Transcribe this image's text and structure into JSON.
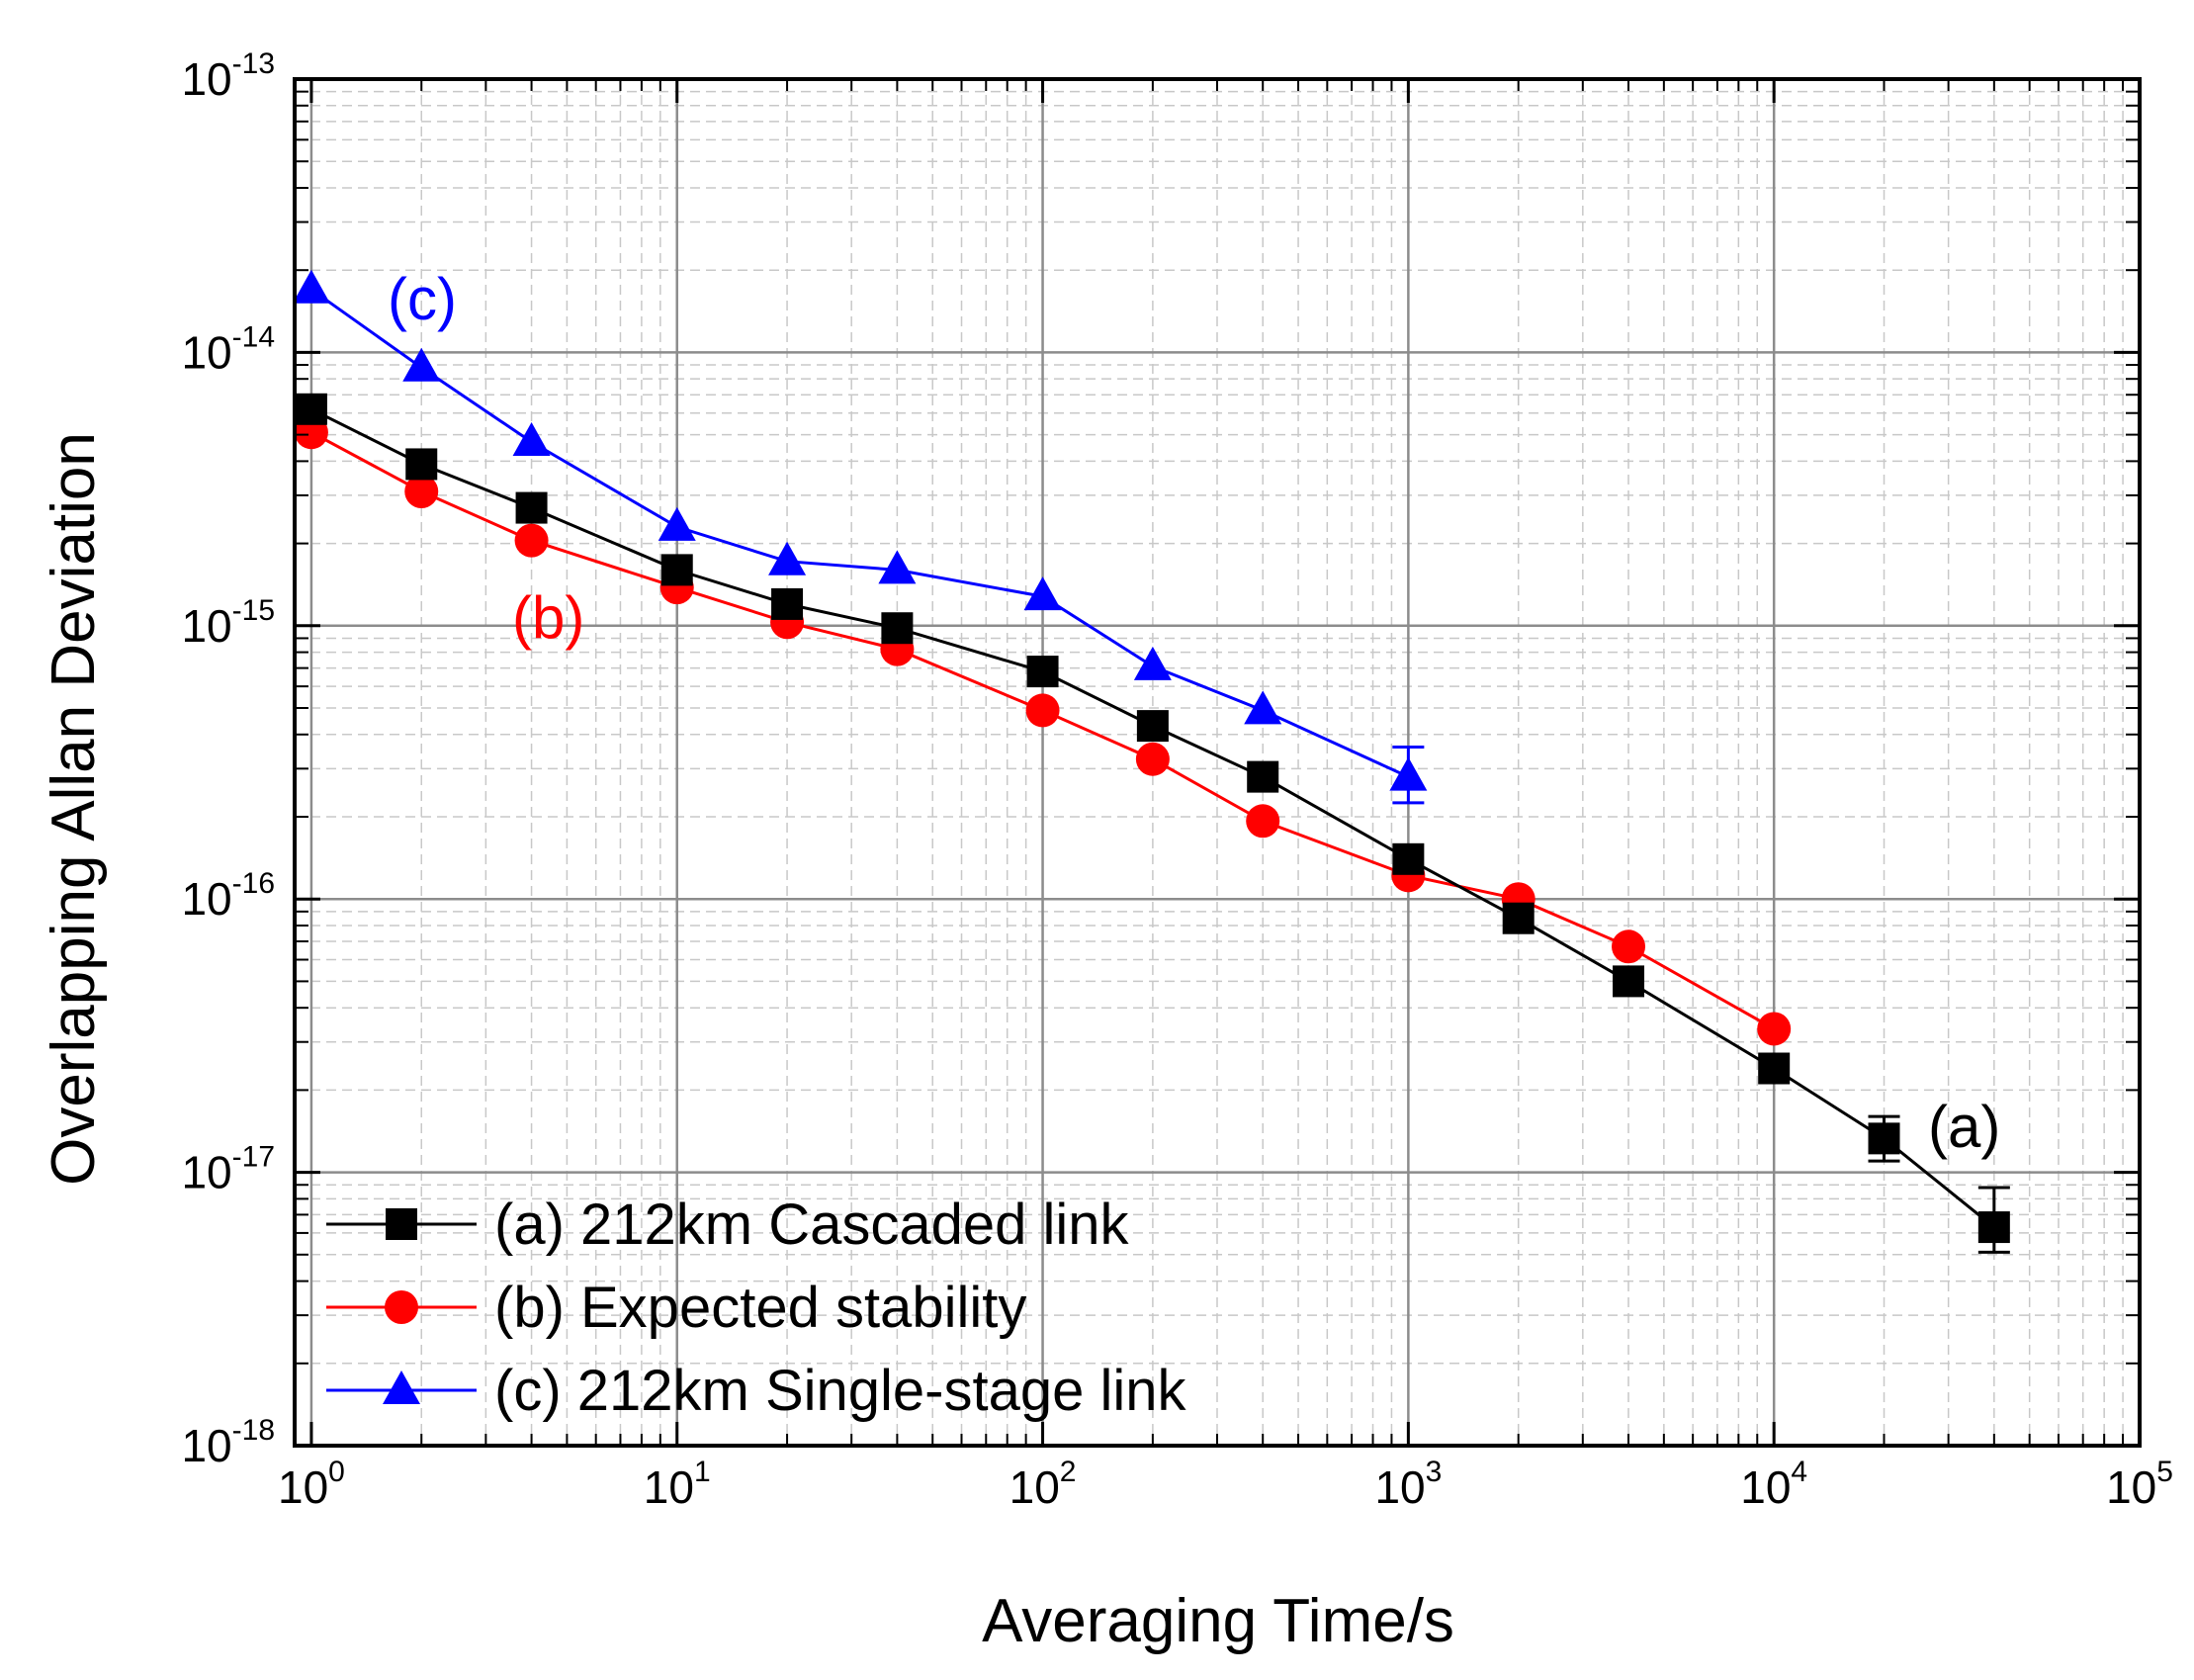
{
  "chart_data": {
    "type": "line",
    "x_scale": "log",
    "y_scale": "log",
    "xlabel": "Averaging Time/s",
    "ylabel": "Overlapping Allan Deviation",
    "xlim": [
      0.9,
      100000
    ],
    "ylim": [
      1e-18,
      1e-13
    ],
    "x_ticks": [
      {
        "base": "10",
        "exp": "0"
      },
      {
        "base": "10",
        "exp": "1"
      },
      {
        "base": "10",
        "exp": "2"
      },
      {
        "base": "10",
        "exp": "3"
      },
      {
        "base": "10",
        "exp": "4"
      },
      {
        "base": "10",
        "exp": "5"
      }
    ],
    "y_ticks": [
      {
        "base": "10",
        "exp": "-13"
      },
      {
        "base": "10",
        "exp": "-14"
      },
      {
        "base": "10",
        "exp": "-15"
      },
      {
        "base": "10",
        "exp": "-16"
      },
      {
        "base": "10",
        "exp": "-17"
      },
      {
        "base": "10",
        "exp": "-18"
      }
    ],
    "grid": true,
    "legend_position": "bottom-left",
    "series": [
      {
        "name": "(a) 212km Cascaded link",
        "color": "#000000",
        "marker": "square",
        "annotation": "(a)",
        "x": [
          1,
          2,
          4,
          10,
          20,
          40,
          100,
          200,
          400,
          1000,
          2000,
          4000,
          10000,
          20000,
          40000
        ],
        "y": [
          6.2e-15,
          3.9e-15,
          2.7e-15,
          1.6e-15,
          1.2e-15,
          9.8e-16,
          6.8e-16,
          4.3e-16,
          2.8e-16,
          1.4e-16,
          8.5e-17,
          5e-17,
          2.4e-17,
          1.33e-17,
          6.3e-18
        ],
        "error_upper": [
          null,
          null,
          null,
          null,
          null,
          null,
          null,
          null,
          null,
          null,
          null,
          null,
          null,
          1.6e-17,
          8.8e-18
        ],
        "error_lower": [
          null,
          null,
          null,
          null,
          null,
          null,
          null,
          null,
          null,
          null,
          null,
          null,
          null,
          1.1e-17,
          5.1e-18
        ]
      },
      {
        "name": "(b) Expected stability",
        "color": "#ff0000",
        "marker": "circle",
        "annotation": "(b)",
        "x": [
          1,
          2,
          4,
          10,
          20,
          40,
          100,
          200,
          400,
          1000,
          2000,
          4000,
          10000
        ],
        "y": [
          5.1e-15,
          3.1e-15,
          2.05e-15,
          1.38e-15,
          1.03e-15,
          8.2e-16,
          4.9e-16,
          3.25e-16,
          1.93e-16,
          1.22e-16,
          1e-16,
          6.7e-17,
          3.35e-17
        ]
      },
      {
        "name": "(c) 212km Single-stage link",
        "color": "#0000ff",
        "marker": "triangle",
        "annotation": "(c)",
        "x": [
          1,
          2,
          4,
          10,
          20,
          40,
          100,
          200,
          400,
          1000
        ],
        "y": [
          1.7e-14,
          8.8e-15,
          4.7e-15,
          2.3e-15,
          1.72e-15,
          1.6e-15,
          1.28e-15,
          7.1e-16,
          4.9e-16,
          2.8e-16
        ],
        "error_upper": [
          null,
          null,
          null,
          null,
          null,
          null,
          null,
          null,
          null,
          3.6e-16
        ],
        "error_lower": [
          null,
          null,
          null,
          null,
          null,
          null,
          null,
          null,
          null,
          2.25e-16
        ]
      }
    ]
  }
}
